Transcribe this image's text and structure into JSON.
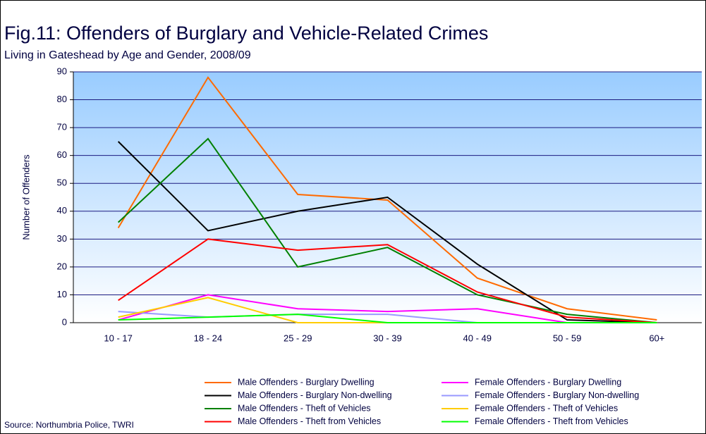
{
  "chart_data": {
    "type": "line",
    "title": "Fig.11: Offenders of Burglary and Vehicle-Related Crimes",
    "subtitle": "Living in Gateshead by Age and Gender, 2008/09",
    "y_label": "Number of Offenders",
    "source": "Source: Northumbria Police, TWRI",
    "categories": [
      "10 - 17",
      "18 - 24",
      "25 - 29",
      "30 - 39",
      "40 - 49",
      "50 - 59",
      "60+"
    ],
    "ylim": [
      0,
      90
    ],
    "yticks": [
      0,
      10,
      20,
      30,
      40,
      50,
      60,
      70,
      80,
      90
    ],
    "grid": true,
    "series": [
      {
        "name": "Male Offenders - Burglary Dwelling",
        "color": "#ff6a00",
        "values": [
          34,
          88,
          46,
          44,
          16,
          5,
          1
        ]
      },
      {
        "name": "Male Offenders - Burglary Non-dwelling",
        "color": "#000000",
        "values": [
          65,
          33,
          40,
          45,
          21,
          1,
          0
        ]
      },
      {
        "name": "Male Offenders - Theft of Vehicles",
        "color": "#008000",
        "values": [
          36,
          66,
          20,
          27,
          10,
          3,
          0
        ]
      },
      {
        "name": "Male Offenders - Theft from Vehicles",
        "color": "#ff0000",
        "values": [
          8,
          30,
          26,
          28,
          11,
          2,
          0
        ]
      },
      {
        "name": "Female Offenders - Burglary Dwelling",
        "color": "#ff00ff",
        "values": [
          1,
          10,
          5,
          4,
          5,
          0,
          0
        ]
      },
      {
        "name": "Female Offenders - Burglary Non-dwelling",
        "color": "#9999ff",
        "values": [
          4,
          2,
          3,
          3,
          0,
          0,
          0
        ]
      },
      {
        "name": "Female Offenders - Theft of Vehicles",
        "color": "#ffcc00",
        "values": [
          2,
          9,
          0,
          0,
          0,
          0,
          0
        ]
      },
      {
        "name": "Female Offenders - Theft from Vehicles",
        "color": "#00ff00",
        "values": [
          1,
          2,
          3,
          0,
          0,
          0,
          0
        ]
      }
    ]
  }
}
